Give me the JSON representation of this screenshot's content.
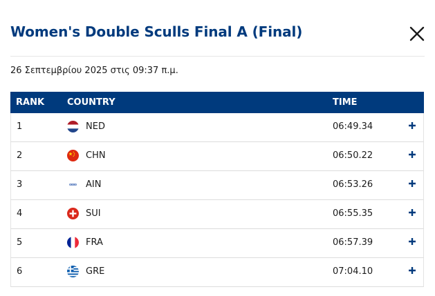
{
  "dialog": {
    "title": "Women's Double Sculls Final A (Final)",
    "close_icon": "close-icon",
    "date": "26 Σεπτεμβρίου 2025 στις 09:37 π.μ."
  },
  "table": {
    "headers": {
      "rank": "RANK",
      "country": "COUNTRY",
      "time": "TIME"
    },
    "rows": [
      {
        "rank": "1",
        "country": "NED",
        "time": "06:49.34",
        "flag": "netherlands-flag-icon"
      },
      {
        "rank": "2",
        "country": "CHN",
        "time": "06:50.22",
        "flag": "china-flag-icon"
      },
      {
        "rank": "3",
        "country": "AIN",
        "time": "06:53.26",
        "flag": "ain-flag-icon"
      },
      {
        "rank": "4",
        "country": "SUI",
        "time": "06:55.35",
        "flag": "switzerland-flag-icon"
      },
      {
        "rank": "5",
        "country": "FRA",
        "time": "06:57.39",
        "flag": "france-flag-icon"
      },
      {
        "rank": "6",
        "country": "GRE",
        "time": "07:04.10",
        "flag": "greece-flag-icon"
      }
    ]
  },
  "colors": {
    "accent": "#003a7d",
    "header_text": "#ffffff"
  },
  "expand_icon": "plus-icon"
}
